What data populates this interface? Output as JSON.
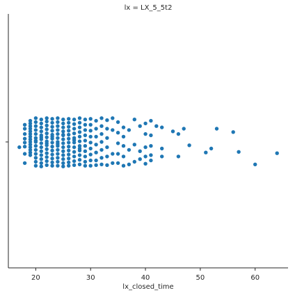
{
  "chart_data": {
    "type": "scatter",
    "title": "lx = LX_5_5t2",
    "xlabel": "lx_closed_time",
    "ylabel": "",
    "xlim": [
      15,
      66
    ],
    "xticks": [
      20,
      30,
      40,
      50,
      60
    ],
    "grid": false,
    "point_color": "#1f77b4",
    "jitter_categorical_y": true,
    "x": [
      17,
      18,
      18,
      18,
      18,
      18,
      18,
      18,
      18,
      19,
      19,
      19,
      19,
      19,
      19,
      19,
      19,
      19,
      19,
      19,
      19,
      19,
      19,
      20,
      20,
      20,
      20,
      20,
      20,
      20,
      20,
      20,
      20,
      20,
      20,
      20,
      20,
      21,
      21,
      21,
      21,
      21,
      21,
      21,
      21,
      21,
      21,
      21,
      21,
      21,
      21,
      22,
      22,
      22,
      22,
      22,
      22,
      22,
      22,
      22,
      22,
      22,
      22,
      22,
      22,
      23,
      23,
      23,
      23,
      23,
      23,
      23,
      23,
      23,
      23,
      23,
      23,
      23,
      23,
      24,
      24,
      24,
      24,
      24,
      24,
      24,
      24,
      24,
      24,
      24,
      24,
      24,
      24,
      25,
      25,
      25,
      25,
      25,
      25,
      25,
      25,
      25,
      25,
      25,
      25,
      25,
      25,
      26,
      26,
      26,
      26,
      26,
      26,
      26,
      26,
      26,
      26,
      26,
      26,
      26,
      27,
      27,
      27,
      27,
      27,
      27,
      27,
      27,
      27,
      27,
      27,
      27,
      28,
      28,
      28,
      28,
      28,
      28,
      28,
      28,
      28,
      28,
      28,
      28,
      29,
      29,
      29,
      29,
      29,
      29,
      29,
      29,
      29,
      29,
      30,
      30,
      30,
      30,
      30,
      30,
      30,
      30,
      30,
      31,
      31,
      31,
      31,
      31,
      31,
      31,
      32,
      32,
      32,
      32,
      32,
      32,
      32,
      33,
      33,
      33,
      33,
      33,
      33,
      34,
      34,
      34,
      34,
      35,
      35,
      35,
      35,
      35,
      36,
      36,
      36,
      36,
      36,
      37,
      37,
      37,
      38,
      38,
      38,
      39,
      39,
      39,
      40,
      40,
      40,
      40,
      40,
      41,
      41,
      41,
      41,
      41,
      42,
      43,
      43,
      43,
      45,
      46,
      46,
      47,
      48,
      51,
      52,
      53,
      56,
      57,
      60,
      64
    ],
    "y_jitter": [
      0.4,
      -1.3,
      -1.0,
      -0.6,
      -0.25,
      0.05,
      0.35,
      0.9,
      1.6,
      -1.6,
      -1.4,
      -1.2,
      -1.0,
      -0.8,
      -0.6,
      -0.4,
      -0.2,
      0.0,
      0.2,
      0.4,
      0.6,
      0.8,
      1.0,
      -1.8,
      -1.5,
      -1.2,
      -0.9,
      -0.6,
      -0.3,
      0.0,
      0.3,
      0.6,
      0.9,
      1.2,
      1.5,
      1.8,
      -0.1,
      -1.7,
      -1.4,
      -1.1,
      -0.8,
      -0.5,
      -0.2,
      0.1,
      0.4,
      0.7,
      1.0,
      1.3,
      1.6,
      1.85,
      -0.35,
      -1.8,
      -1.55,
      -1.25,
      -0.95,
      -0.65,
      -0.35,
      -0.05,
      0.25,
      0.55,
      0.85,
      1.15,
      1.45,
      1.75,
      0.1,
      -1.75,
      -1.45,
      -1.15,
      -0.85,
      -0.55,
      -0.25,
      0.05,
      0.35,
      0.65,
      0.95,
      1.25,
      1.55,
      1.8,
      -0.4,
      -1.8,
      -1.5,
      -1.2,
      -0.9,
      -0.6,
      -0.3,
      0.0,
      0.3,
      0.6,
      0.9,
      1.2,
      1.5,
      1.8,
      0.15,
      -1.7,
      -1.4,
      -1.1,
      -0.8,
      -0.5,
      -0.2,
      0.1,
      0.4,
      0.7,
      1.0,
      1.3,
      1.6,
      1.85,
      -0.55,
      -1.75,
      -1.45,
      -1.15,
      -0.85,
      -0.55,
      -0.25,
      0.05,
      0.35,
      0.65,
      0.95,
      1.25,
      1.55,
      1.8,
      -1.7,
      -1.35,
      -1.0,
      -0.65,
      -0.3,
      0.05,
      0.4,
      0.75,
      1.1,
      1.45,
      1.75,
      -0.15,
      -1.8,
      -1.45,
      -1.1,
      -0.75,
      -0.4,
      -0.05,
      0.3,
      0.65,
      1.0,
      1.35,
      1.7,
      0.5,
      -1.7,
      -1.3,
      -0.9,
      -0.5,
      -0.1,
      0.3,
      0.7,
      1.1,
      1.5,
      1.8,
      -1.75,
      -1.3,
      -0.85,
      -0.4,
      0.05,
      0.5,
      0.95,
      1.4,
      1.8,
      -1.6,
      -1.0,
      -0.4,
      0.2,
      0.8,
      1.4,
      1.75,
      -1.8,
      -1.2,
      -0.6,
      0.0,
      0.6,
      1.2,
      1.7,
      -1.65,
      -1.0,
      -0.3,
      0.4,
      1.1,
      1.75,
      -1.8,
      -0.9,
      0.9,
      1.6,
      -1.5,
      -0.7,
      0.1,
      0.9,
      1.6,
      -1.1,
      -0.4,
      0.3,
      1.1,
      1.8,
      -0.9,
      0.6,
      1.7,
      -1.7,
      0.2,
      1.5,
      -1.2,
      0.7,
      1.3,
      -1.4,
      -0.6,
      0.4,
      1.1,
      1.65,
      -1.6,
      -0.5,
      0.3,
      1.0,
      1.4,
      -1.2,
      -1.1,
      0.5,
      1.1,
      -0.8,
      1.1,
      -0.6,
      -1.0,
      0.25,
      0.8,
      0.5,
      -1.0,
      -0.75,
      0.75,
      1.7,
      0.85
    ]
  }
}
